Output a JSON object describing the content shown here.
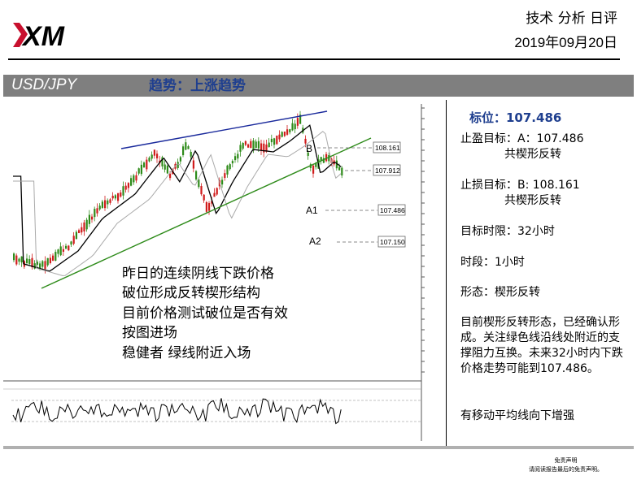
{
  "header": {
    "logo_text": "XM",
    "title": "技术 分析 日评",
    "date": "2019年09月20日"
  },
  "banner": {
    "pair": "USD/JPY",
    "trend": "趋势：上涨趋势"
  },
  "chart": {
    "price_tags": [
      "108.161",
      "107.912",
      "107.486",
      "107.150"
    ],
    "point_labels": [
      "B",
      "A1",
      "A2"
    ],
    "notes": [
      "昨日的连续阴线下跌价格",
      "破位形成反转楔形结构",
      "目前价格测试破位是否有效",
      "按图进场",
      "稳健者 绿线附近入场"
    ],
    "colors": {
      "upper_line": "#1a2a9c",
      "lower_line": "#2e8b1a",
      "up_candle": "#2e8b1a",
      "down_candle": "#d01c1c"
    }
  },
  "side": {
    "target": "标位：107.486",
    "tp_line1": "止盈目标：A：107.486",
    "tp_line2": "共楔形反转",
    "sl_line1": "止损目标：B: 108.161",
    "sl_line2": "共楔形反转",
    "time_limit": "目标时限：32小时",
    "period": "时段：1小时",
    "pattern": "形态：楔形反转",
    "analysis": "目前楔形反转形态，已经确认形成。关注绿色线沿线处附近的支撑阻力互换。未来32小时内下跌价格走势可能到107.486。",
    "ma_note": "有移动平均线向下增强"
  },
  "disclaimer": {
    "line1": "免责声明",
    "line2": "请阅读报告最后的免责声明。"
  }
}
